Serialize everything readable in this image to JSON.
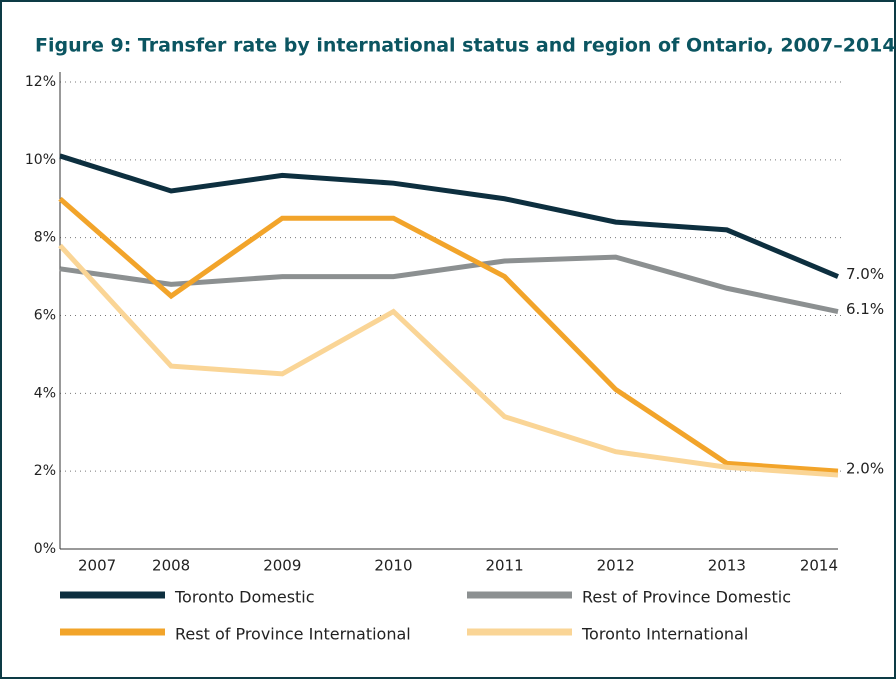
{
  "chart_data": {
    "type": "line",
    "title": "Figure 9: Transfer rate by international status and region of Ontario, 2007–2014",
    "categories": [
      "2007",
      "2008",
      "2009",
      "2010",
      "2011",
      "2012",
      "2013",
      "2014"
    ],
    "series": [
      {
        "name": "Toronto Domestic",
        "color": "#0d2f3f",
        "values": [
          10.1,
          9.2,
          9.6,
          9.4,
          9.0,
          8.4,
          8.2,
          7.0
        ],
        "value_labels": [
          null,
          null,
          null,
          null,
          null,
          null,
          null,
          "7.0%"
        ]
      },
      {
        "name": "Rest of Province Domestic",
        "color": "#8c9091",
        "values": [
          7.2,
          6.8,
          7.0,
          7.0,
          7.4,
          7.5,
          6.7,
          6.1
        ],
        "value_labels": [
          null,
          null,
          null,
          null,
          null,
          null,
          null,
          "6.1%"
        ]
      },
      {
        "name": "Rest of Province International",
        "color": "#f2a42a",
        "values": [
          9.0,
          6.5,
          8.5,
          8.5,
          7.0,
          4.1,
          2.2,
          2.0
        ],
        "value_labels": [
          null,
          null,
          null,
          null,
          null,
          null,
          null,
          "2.0%"
        ]
      },
      {
        "name": "Toronto International",
        "color": "#fad596",
        "values": [
          7.8,
          4.7,
          4.5,
          6.1,
          3.4,
          2.5,
          2.1,
          1.9
        ]
      }
    ],
    "ylim": [
      0,
      12
    ],
    "yticks": [
      {
        "value": 0,
        "label": "0%"
      },
      {
        "value": 2,
        "label": "2%"
      },
      {
        "value": 4,
        "label": "4%"
      },
      {
        "value": 6,
        "label": "6%"
      },
      {
        "value": 8,
        "label": "8%"
      },
      {
        "value": 10,
        "label": "10%"
      },
      {
        "value": 12,
        "label": "12%"
      }
    ],
    "grid": true
  }
}
